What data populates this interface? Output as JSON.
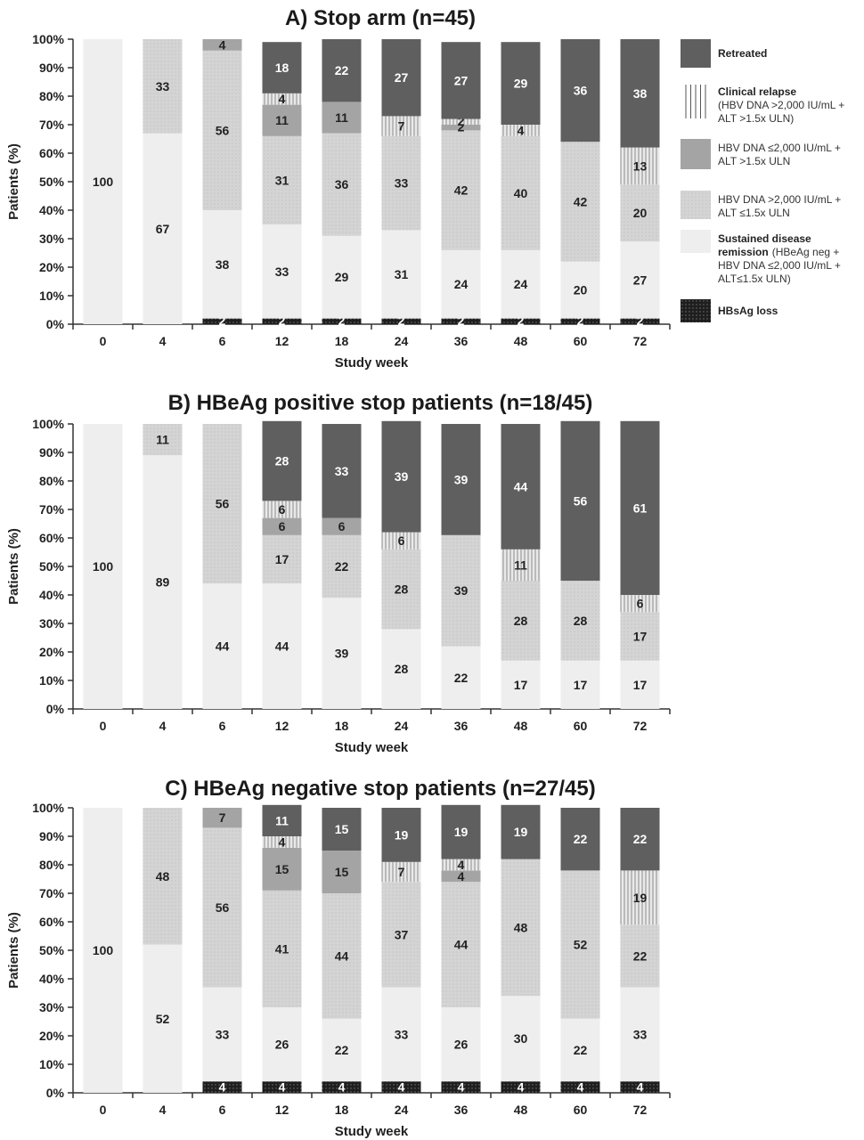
{
  "chart_data": [
    {
      "type": "bar",
      "stacked": true,
      "title": "A) Stop arm (n=45)",
      "xlabel": "Study week",
      "ylabel": "Patients (%)",
      "ylim": [
        0,
        100
      ],
      "yticks": [
        "0%",
        "10%",
        "20%",
        "30%",
        "40%",
        "50%",
        "60%",
        "70%",
        "80%",
        "90%",
        "100%"
      ],
      "categories": [
        "0",
        "4",
        "6",
        "12",
        "18",
        "24",
        "36",
        "48",
        "60",
        "72"
      ],
      "series": [
        {
          "name": "HBsAg loss",
          "values": [
            0,
            0,
            2,
            2,
            2,
            2,
            2,
            2,
            2,
            2
          ],
          "labels": [
            "",
            "",
            "2",
            "2",
            "2",
            "2",
            "2",
            "2",
            "2",
            "2"
          ]
        },
        {
          "name": "Sustained disease remission",
          "values": [
            100,
            67,
            38,
            33,
            29,
            31,
            24,
            24,
            20,
            27
          ],
          "labels": [
            "100",
            "67",
            "38",
            "33",
            "29",
            "31",
            "24",
            "24",
            "20",
            "27"
          ]
        },
        {
          "name": "HBV DNA >2,000 IU/mL + ALT ≤1.5x ULN",
          "values": [
            0,
            33,
            56,
            31,
            36,
            33,
            42,
            40,
            42,
            20
          ],
          "labels": [
            "",
            "33",
            "56",
            "31",
            "36",
            "33",
            "42",
            "40",
            "42",
            "20"
          ]
        },
        {
          "name": "HBV DNA ≤2,000 IU/mL + ALT >1.5x ULN",
          "values": [
            0,
            0,
            4,
            11,
            11,
            0,
            2,
            0,
            0,
            0
          ],
          "labels": [
            "",
            "",
            "4",
            "11",
            "11",
            "",
            "2",
            "",
            "",
            ""
          ]
        },
        {
          "name": "Clinical relapse",
          "values": [
            0,
            0,
            0,
            4,
            0,
            7,
            2,
            4,
            0,
            13
          ],
          "labels": [
            "",
            "",
            "",
            "4",
            "",
            "7",
            "2",
            "4",
            "",
            "13"
          ]
        },
        {
          "name": "Retreated",
          "values": [
            0,
            0,
            0,
            18,
            22,
            27,
            27,
            29,
            36,
            38
          ],
          "labels": [
            "",
            "",
            "",
            "18",
            "22",
            "27",
            "27",
            "29",
            "36",
            "38"
          ]
        }
      ]
    },
    {
      "type": "bar",
      "stacked": true,
      "title": "B) HBeAg positive stop patients (n=18/45)",
      "xlabel": "Study week",
      "ylabel": "Patients (%)",
      "ylim": [
        0,
        100
      ],
      "yticks": [
        "0%",
        "10%",
        "20%",
        "30%",
        "40%",
        "50%",
        "60%",
        "70%",
        "80%",
        "90%",
        "100%"
      ],
      "categories": [
        "0",
        "4",
        "6",
        "12",
        "18",
        "24",
        "36",
        "48",
        "60",
        "72"
      ],
      "series": [
        {
          "name": "HBsAg loss",
          "values": [
            0,
            0,
            0,
            0,
            0,
            0,
            0,
            0,
            0,
            0
          ],
          "labels": [
            "",
            "",
            "",
            "",
            "",
            "",
            "",
            "",
            "",
            ""
          ]
        },
        {
          "name": "Sustained disease remission",
          "values": [
            100,
            89,
            44,
            44,
            39,
            28,
            22,
            17,
            17,
            17
          ],
          "labels": [
            "100",
            "89",
            "44",
            "44",
            "39",
            "28",
            "22",
            "17",
            "17",
            "17"
          ]
        },
        {
          "name": "HBV DNA >2,000 IU/mL + ALT ≤1.5x ULN",
          "values": [
            0,
            11,
            56,
            17,
            22,
            28,
            39,
            28,
            28,
            17
          ],
          "labels": [
            "",
            "11",
            "56",
            "17",
            "22",
            "28",
            "39",
            "28",
            "28",
            "17"
          ]
        },
        {
          "name": "HBV DNA ≤2,000 IU/mL + ALT >1.5x ULN",
          "values": [
            0,
            0,
            0,
            6,
            6,
            0,
            0,
            0,
            0,
            0
          ],
          "labels": [
            "",
            "",
            "",
            "6",
            "6",
            "",
            "",
            "",
            "",
            ""
          ]
        },
        {
          "name": "Clinical relapse",
          "values": [
            0,
            0,
            0,
            6,
            0,
            6,
            0,
            11,
            0,
            6
          ],
          "labels": [
            "",
            "",
            "",
            "6",
            "",
            "6",
            "",
            "11",
            "",
            "6"
          ]
        },
        {
          "name": "Retreated",
          "values": [
            0,
            0,
            0,
            28,
            33,
            39,
            39,
            44,
            56,
            61
          ],
          "labels": [
            "",
            "",
            "",
            "28",
            "33",
            "39",
            "39",
            "44",
            "56",
            "61"
          ]
        }
      ]
    },
    {
      "type": "bar",
      "stacked": true,
      "title": "C) HBeAg negative stop patients (n=27/45)",
      "xlabel": "Study week",
      "ylabel": "Patients (%)",
      "ylim": [
        0,
        100
      ],
      "yticks": [
        "0%",
        "10%",
        "20%",
        "30%",
        "40%",
        "50%",
        "60%",
        "70%",
        "80%",
        "90%",
        "100%"
      ],
      "categories": [
        "0",
        "4",
        "6",
        "12",
        "18",
        "24",
        "36",
        "48",
        "60",
        "72"
      ],
      "series": [
        {
          "name": "HBsAg loss",
          "values": [
            0,
            0,
            4,
            4,
            4,
            4,
            4,
            4,
            4,
            4
          ],
          "labels": [
            "",
            "",
            "4",
            "4",
            "4",
            "4",
            "4",
            "4",
            "4",
            "4"
          ]
        },
        {
          "name": "Sustained disease remission",
          "values": [
            100,
            52,
            33,
            26,
            22,
            33,
            26,
            30,
            22,
            33
          ],
          "labels": [
            "100",
            "52",
            "33",
            "26",
            "22",
            "33",
            "26",
            "30",
            "22",
            "33"
          ]
        },
        {
          "name": "HBV DNA >2,000 IU/mL + ALT ≤1.5x ULN",
          "values": [
            0,
            48,
            56,
            41,
            44,
            37,
            44,
            48,
            52,
            22
          ],
          "labels": [
            "",
            "48",
            "56",
            "41",
            "44",
            "37",
            "44",
            "48",
            "52",
            "22"
          ]
        },
        {
          "name": "HBV DNA ≤2,000 IU/mL + ALT >1.5x ULN",
          "values": [
            0,
            0,
            7,
            15,
            15,
            0,
            4,
            0,
            0,
            0
          ],
          "labels": [
            "",
            "",
            "7",
            "15",
            "15",
            "",
            "4",
            "",
            "",
            ""
          ]
        },
        {
          "name": "Clinical relapse",
          "values": [
            0,
            0,
            0,
            4,
            0,
            7,
            4,
            0,
            0,
            19
          ],
          "labels": [
            "",
            "",
            "",
            "4",
            "",
            "7",
            "4",
            "",
            "",
            "19"
          ]
        },
        {
          "name": "Retreated",
          "values": [
            0,
            0,
            0,
            11,
            15,
            19,
            19,
            19,
            22,
            22
          ],
          "labels": [
            "",
            "",
            "",
            "11",
            "15",
            "19",
            "19",
            "19",
            "22",
            "22"
          ]
        }
      ]
    }
  ],
  "legend": {
    "position": "right of panel A",
    "items": [
      {
        "key": "retreated",
        "title": "Retreated",
        "text": []
      },
      {
        "key": "relapse",
        "title": "Clinical relapse",
        "text": [
          "(HBV DNA >2,000  IU/mL +",
          "ALT >1.5x  ULN)"
        ]
      },
      {
        "key": "dna_low",
        "title": "",
        "text": [
          "HBV DNA ≤2,000  IU/mL +",
          "ALT >1.5x  ULN"
        ]
      },
      {
        "key": "dna_high",
        "title": "",
        "text": [
          "HBV DNA >2,000  IU/mL +",
          "ALT ≤1.5x  ULN"
        ]
      },
      {
        "key": "sustained",
        "title": "Sustained disease",
        "text_bold_tail": "remission",
        "text": [
          "(HBeAg neg +",
          "HBV DNA ≤2,000 IU/mL +",
          "ALT≤1.5x ULN)"
        ]
      },
      {
        "key": "hbsag",
        "title": "HBsAg loss",
        "text": []
      }
    ]
  },
  "colors": {
    "retreated": "#5f5f5f",
    "relapse": "#e9e9e9",
    "relapse_hatch": "#8a8a8a",
    "dna_low": "#a4a4a4",
    "dna_high": "#d3d3d3",
    "sustained": "#eeeeee",
    "hbsag": "#1e1e1e"
  }
}
